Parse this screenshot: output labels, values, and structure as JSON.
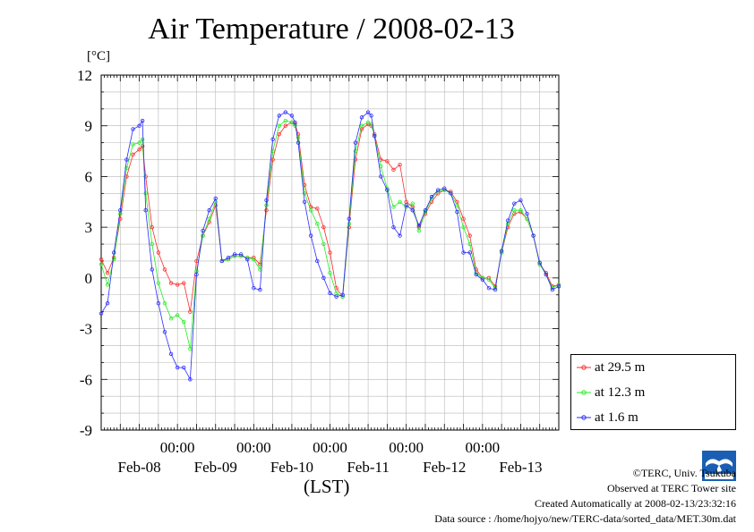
{
  "title": "Air Temperature / 2008-02-13",
  "unit_label": "[°C]",
  "xlabel": "(LST)",
  "legend": [
    {
      "label": "at 29.5 m",
      "color": "#ff2a2a"
    },
    {
      "label": "at 12.3 m",
      "color": "#22ee22"
    },
    {
      "label": "at 1.6 m",
      "color": "#2a2aff"
    }
  ],
  "footer": {
    "copyright": "©TERC, Univ. Tsukuba",
    "observed": "Observed at TERC Tower site",
    "created": "Created Automatically at 2008-02-13/23:32:16",
    "source": "Data source : /home/hojyo/new/TERC-data/sorted_data/MET.30m.dat"
  },
  "logo_text": "TERC",
  "chart_data": {
    "type": "line",
    "title": "Air Temperature / 2008-02-13",
    "ylabel": "[°C]",
    "xlabel": "(LST)",
    "ylim": [
      -9,
      12
    ],
    "yticks": [
      -9,
      -6,
      -3,
      0,
      3,
      6,
      9,
      12
    ],
    "xlim_hours": [
      0,
      144
    ],
    "x_ticks": [
      {
        "hour": 24,
        "time": "00:00"
      },
      {
        "hour": 48,
        "time": "00:00"
      },
      {
        "hour": 72,
        "time": "00:00"
      },
      {
        "hour": 96,
        "time": "00:00"
      },
      {
        "hour": 120,
        "time": "00:00"
      }
    ],
    "day_labels": [
      {
        "hour": 12,
        "label": "Feb-08"
      },
      {
        "hour": 36,
        "label": "Feb-09"
      },
      {
        "hour": 60,
        "label": "Feb-10"
      },
      {
        "hour": 84,
        "label": "Feb-11"
      },
      {
        "hour": 108,
        "label": "Feb-12"
      },
      {
        "hour": 132,
        "label": "Feb-13"
      }
    ],
    "grid": true,
    "x_hours": [
      0,
      2,
      4,
      6,
      8,
      10,
      12,
      13,
      14,
      16,
      18,
      20,
      22,
      24,
      26,
      28,
      30,
      32,
      34,
      36,
      38,
      40,
      42,
      44,
      46,
      48,
      50,
      52,
      54,
      56,
      58,
      60,
      61,
      62,
      64,
      66,
      68,
      70,
      72,
      74,
      76,
      78,
      80,
      82,
      84,
      85,
      86,
      88,
      90,
      92,
      94,
      96,
      98,
      100,
      102,
      104,
      106,
      108,
      110,
      112,
      114,
      116,
      118,
      120,
      122,
      124,
      126,
      128,
      130,
      132,
      134,
      136,
      138,
      140,
      142,
      144
    ],
    "series": [
      {
        "name": "at 29.5 m",
        "color": "#ff2a2a",
        "values": [
          1.1,
          0.3,
          1.2,
          3.5,
          6.0,
          7.3,
          7.6,
          7.8,
          6.0,
          3.0,
          1.5,
          0.5,
          -0.3,
          -0.4,
          -0.3,
          -2.0,
          1.0,
          2.5,
          3.3,
          4.3,
          1.0,
          1.1,
          1.3,
          1.3,
          1.2,
          1.2,
          0.8,
          4.0,
          7.0,
          8.5,
          9.0,
          9.2,
          9.1,
          8.5,
          5.5,
          4.2,
          4.1,
          3.0,
          1.5,
          -0.6,
          -1.1,
          3.0,
          7.0,
          8.8,
          9.1,
          9.0,
          8.5,
          7.0,
          6.9,
          6.4,
          6.7,
          4.5,
          4.2,
          3.0,
          3.8,
          4.5,
          5.0,
          5.2,
          5.1,
          4.5,
          3.5,
          2.5,
          0.5,
          0.0,
          0.0,
          -0.5,
          1.5,
          3.0,
          3.8,
          3.9,
          3.5,
          2.5,
          0.8,
          0.3,
          -0.5,
          -0.4
        ]
      },
      {
        "name": "at 12.3 m",
        "color": "#22ee22",
        "values": [
          0.8,
          -0.4,
          1.1,
          3.8,
          6.5,
          7.9,
          8.0,
          8.2,
          5.0,
          2.0,
          -0.3,
          -1.5,
          -2.4,
          -2.2,
          -2.6,
          -4.2,
          0.4,
          2.5,
          3.5,
          4.5,
          1.0,
          1.1,
          1.3,
          1.3,
          1.2,
          1.1,
          0.5,
          4.3,
          7.5,
          9.0,
          9.3,
          9.2,
          9.0,
          8.3,
          5.0,
          4.0,
          3.2,
          2.0,
          0.3,
          -0.9,
          -1.1,
          3.2,
          7.5,
          9.0,
          9.2,
          9.1,
          8.4,
          6.6,
          5.3,
          4.2,
          4.5,
          4.2,
          4.4,
          2.8,
          3.9,
          4.7,
          5.1,
          5.2,
          5.0,
          4.3,
          3.0,
          2.0,
          0.3,
          0.0,
          -0.1,
          -0.6,
          1.5,
          3.2,
          4.0,
          4.0,
          3.5,
          2.5,
          0.8,
          0.2,
          -0.6,
          -0.4
        ]
      },
      {
        "name": "at 1.6 m",
        "color": "#2a2aff",
        "values": [
          -2.1,
          -1.5,
          1.5,
          4.0,
          7.0,
          8.8,
          9.0,
          9.3,
          4.0,
          0.5,
          -1.5,
          -3.2,
          -4.5,
          -5.3,
          -5.3,
          -6.0,
          0.2,
          2.8,
          4.0,
          4.7,
          1.0,
          1.2,
          1.4,
          1.4,
          1.1,
          -0.6,
          -0.7,
          4.6,
          8.2,
          9.6,
          9.8,
          9.6,
          9.2,
          8.0,
          4.5,
          2.5,
          1.0,
          0.0,
          -0.9,
          -1.1,
          -1.0,
          3.5,
          8.0,
          9.5,
          9.8,
          9.6,
          8.4,
          6.0,
          5.2,
          3.0,
          2.5,
          4.3,
          4.0,
          3.1,
          4.0,
          4.8,
          5.2,
          5.3,
          5.0,
          3.9,
          1.5,
          1.5,
          0.2,
          -0.1,
          -0.6,
          -0.7,
          1.6,
          3.4,
          4.4,
          4.6,
          3.8,
          2.5,
          0.9,
          0.2,
          -0.7,
          -0.5
        ]
      }
    ]
  }
}
